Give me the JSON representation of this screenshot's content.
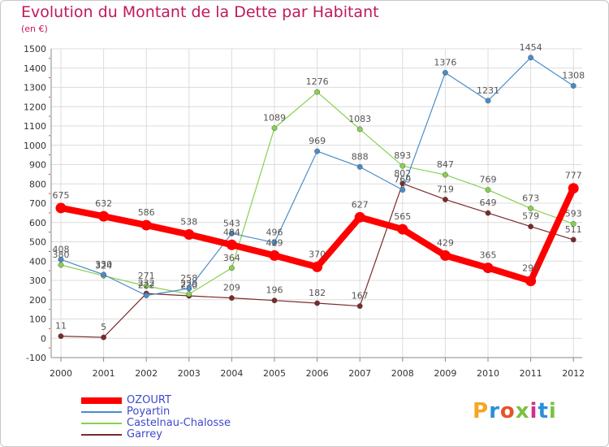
{
  "header": {
    "title": "Evolution du Montant de la Dette par Habitant",
    "unit": "(en €)"
  },
  "logo": {
    "text": "Proxiti",
    "colors": [
      "#f5a623",
      "#2b8fd8",
      "#e8532a",
      "#7ac143",
      "#d12f8a",
      "#2b8fd8",
      "#7ac143"
    ]
  },
  "chart_data": {
    "type": "line",
    "title": "Evolution du Montant de la Dette par Habitant",
    "ylabel": "(en €)",
    "xlabel": "",
    "x": [
      "2000",
      "2001",
      "2002",
      "2003",
      "2004",
      "2005",
      "2006",
      "2007",
      "2008",
      "2009",
      "2010",
      "2011",
      "2012"
    ],
    "ylim": [
      -100,
      1500
    ],
    "yticks": [
      "-100",
      "0",
      "100",
      "200",
      "300",
      "400",
      "500",
      "600",
      "700",
      "800",
      "900",
      "1000",
      "1100",
      "1200",
      "1300",
      "1400",
      "1500"
    ],
    "grid": true,
    "legend_position": "bottom-left",
    "series": [
      {
        "name": "OZOURT",
        "color": "#ff0000",
        "values": [
          675,
          632,
          586,
          538,
          484,
          429,
          370,
          627,
          565,
          429,
          365,
          297,
          777
        ],
        "labels": [
          "675",
          "632",
          "586",
          "538",
          "484",
          "429",
          "370",
          "627",
          "565",
          "429",
          "365",
          "297",
          "777"
        ]
      },
      {
        "name": "Poyartin",
        "color": "#4a8cc8",
        "values": [
          408,
          330,
          222,
          258,
          543,
          496,
          969,
          888,
          769,
          1376,
          1231,
          1454,
          1308
        ],
        "labels": [
          "408",
          "330",
          "222",
          "258",
          "543",
          "496",
          "969",
          "888",
          "769",
          "1376",
          "1231",
          "1454",
          "1308"
        ]
      },
      {
        "name": "Castelnau-Chalosse",
        "color": "#88d050",
        "values": [
          380,
          324,
          271,
          229,
          364,
          1089,
          1276,
          1083,
          893,
          847,
          769,
          673,
          593
        ],
        "labels": [
          "380",
          "324",
          "271",
          "229",
          "364",
          "1089",
          "1276",
          "1083",
          "893",
          "847",
          "769",
          "673",
          "593"
        ]
      },
      {
        "name": "Garrey",
        "color": "#7a2a2a",
        "values": [
          11,
          5,
          232,
          220,
          209,
          196,
          182,
          167,
          802,
          719,
          649,
          579,
          511
        ],
        "labels": [
          "11",
          "5",
          "232",
          "220",
          "209",
          "196",
          "182",
          "167",
          "802",
          "719",
          "649",
          "579",
          "511"
        ]
      }
    ]
  }
}
